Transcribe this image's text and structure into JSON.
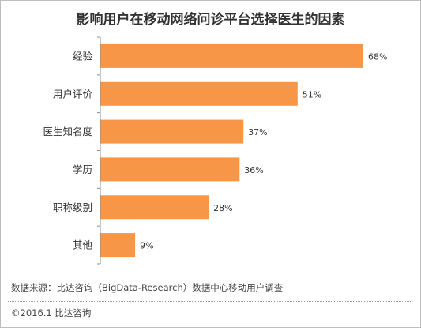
{
  "colors": {
    "bar": "#F79646",
    "axis": "#8c8c8c",
    "text": "#333333"
  },
  "chart_data": {
    "type": "bar",
    "orientation": "horizontal",
    "title": "影响用户在移动网络问诊平台选择医生的因素",
    "categories": [
      "经验",
      "用户评价",
      "医生知名度",
      "学历",
      "职称级别",
      "其他"
    ],
    "values": [
      68,
      51,
      37,
      36,
      28,
      9
    ],
    "value_labels": [
      "68%",
      "51%",
      "37%",
      "36%",
      "28%",
      "9%"
    ],
    "unit": "%",
    "xlim": [
      0,
      70
    ],
    "grid": false,
    "legend": "none"
  },
  "footer": {
    "source": "数据来源：比达咨询（BigData-Research）数据中心移动用户调查",
    "copyright": "©2016.1 比达咨询"
  }
}
